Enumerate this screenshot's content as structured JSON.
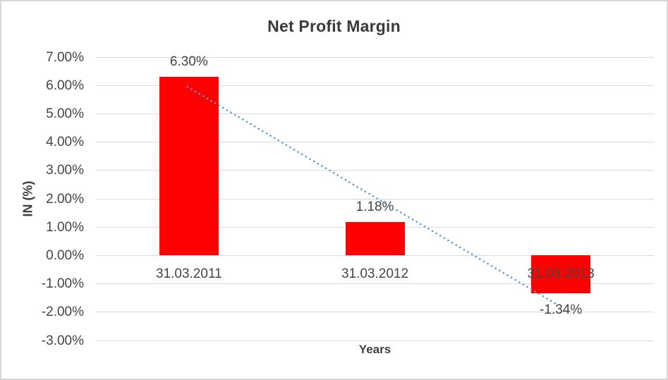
{
  "window": {
    "background": "#ffffff",
    "border_color": "#d6d6d6"
  },
  "chart_data": {
    "type": "bar",
    "title": "Net Profit Margin",
    "xlabel": "Years",
    "ylabel": "IN (%)",
    "categories": [
      "31.03.2011",
      "31.03.2012",
      "31.03.2013"
    ],
    "values": [
      6.3,
      1.18,
      -1.34
    ],
    "data_labels": [
      "6.30%",
      "1.18%",
      "-1.34%"
    ],
    "ylim": [
      -3,
      7
    ],
    "yticks": [
      {
        "value": 7,
        "label": "7.00%"
      },
      {
        "value": 6,
        "label": "6.00%"
      },
      {
        "value": 5,
        "label": "5.00%"
      },
      {
        "value": 4,
        "label": "4.00%"
      },
      {
        "value": 3,
        "label": "3.00%"
      },
      {
        "value": 2,
        "label": "2.00%"
      },
      {
        "value": 1,
        "label": "1.00%"
      },
      {
        "value": 0,
        "label": "0.00%"
      },
      {
        "value": -1,
        "label": "-1.00%"
      },
      {
        "value": -2,
        "label": "-2.00%"
      },
      {
        "value": -3,
        "label": "-3.00%"
      }
    ],
    "grid": true,
    "legend": "none",
    "bar_color": "#ff0000",
    "gridline_color": "#d9d9d9",
    "text_color": "#454545",
    "trendline": {
      "type": "linear",
      "style": "dotted",
      "color": "#5b9bd5",
      "start_value": 5.95,
      "end_value": -1.75
    }
  }
}
